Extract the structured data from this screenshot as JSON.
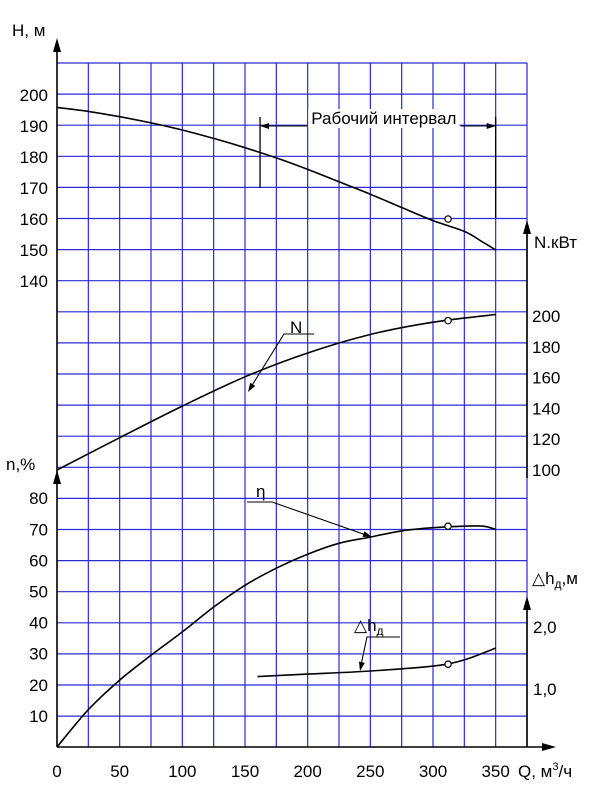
{
  "chart_data": {
    "type": "line",
    "grid": true,
    "x_axis": {
      "label": "Q, м³/ч",
      "range": [
        0,
        375
      ],
      "grid_step": 25,
      "ticks": [
        0,
        50,
        100,
        150,
        200,
        250,
        300,
        350
      ]
    },
    "axes": {
      "H": {
        "label": "H, м",
        "side": "left",
        "ticks": [
          200,
          190,
          180,
          170,
          160,
          150,
          140
        ]
      },
      "N": {
        "label": "N.кВт",
        "side": "right",
        "ticks": [
          200,
          180,
          160,
          140,
          120,
          100
        ]
      },
      "eta": {
        "label": "n,%",
        "side": "left",
        "ticks": [
          80,
          70,
          60,
          50,
          40,
          30,
          20,
          10
        ]
      },
      "dh": {
        "label": "△hд,м",
        "side": "right",
        "ticks": [
          "2,0",
          "1,0"
        ]
      }
    },
    "series": [
      {
        "key": "H",
        "axis": "H",
        "points": [
          [
            0,
            196
          ],
          [
            25,
            194.7
          ],
          [
            50,
            193
          ],
          [
            75,
            191
          ],
          [
            100,
            188.7
          ],
          [
            125,
            186
          ],
          [
            150,
            183
          ],
          [
            175,
            179.7
          ],
          [
            200,
            176
          ],
          [
            225,
            172
          ],
          [
            250,
            168
          ],
          [
            275,
            163.7
          ],
          [
            300,
            159.5
          ],
          [
            325,
            156
          ],
          [
            340,
            152.5
          ],
          [
            350,
            150
          ]
        ],
        "marker": [
          312,
          160
        ]
      },
      {
        "key": "N",
        "axis": "N",
        "label": "N",
        "points": [
          [
            0,
            100
          ],
          [
            50,
            121
          ],
          [
            100,
            141.5
          ],
          [
            150,
            160.5
          ],
          [
            200,
            176
          ],
          [
            250,
            188
          ],
          [
            300,
            196
          ],
          [
            350,
            201
          ]
        ],
        "marker": [
          312,
          197
        ]
      },
      {
        "key": "eta",
        "axis": "eta",
        "label": "η",
        "points": [
          [
            0,
            0
          ],
          [
            25,
            12
          ],
          [
            50,
            21.5
          ],
          [
            75,
            29.5
          ],
          [
            100,
            37
          ],
          [
            125,
            45
          ],
          [
            150,
            52
          ],
          [
            175,
            57.5
          ],
          [
            200,
            62
          ],
          [
            225,
            65.5
          ],
          [
            250,
            67.5
          ],
          [
            275,
            69.5
          ],
          [
            300,
            70.5
          ],
          [
            325,
            71
          ],
          [
            340,
            71
          ],
          [
            350,
            70
          ]
        ],
        "marker": [
          312,
          71
        ]
      },
      {
        "key": "dh",
        "axis": "dh",
        "label": "△hд",
        "points": [
          [
            160,
            1.2
          ],
          [
            200,
            1.24
          ],
          [
            250,
            1.29
          ],
          [
            300,
            1.37
          ],
          [
            325,
            1.47
          ],
          [
            350,
            1.66
          ]
        ],
        "marker": [
          312,
          1.4
        ]
      }
    ],
    "annotations": [
      {
        "text": "Рабочий интервал",
        "from_q": 162,
        "to_q": 350
      }
    ]
  }
}
